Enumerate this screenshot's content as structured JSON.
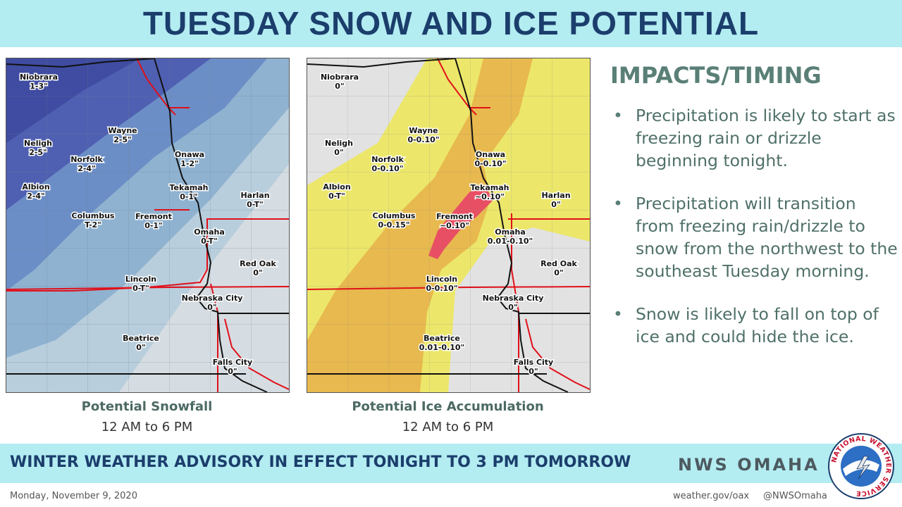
{
  "header": {
    "title": "TUESDAY SNOW AND ICE POTENTIAL"
  },
  "maps": [
    {
      "caption": "Potential Snowfall",
      "subcaption": "12 AM to 6 PM",
      "cities": [
        {
          "name": "Niobrara",
          "value": "1-3\""
        },
        {
          "name": "Neligh",
          "value": "2-5\""
        },
        {
          "name": "Wayne",
          "value": "2-5\""
        },
        {
          "name": "Norfolk",
          "value": "2-4\""
        },
        {
          "name": "Albion",
          "value": "2-4\""
        },
        {
          "name": "Onawa",
          "value": "1-2\""
        },
        {
          "name": "Tekamah",
          "value": "0-1\""
        },
        {
          "name": "Harlan",
          "value": "0-T\""
        },
        {
          "name": "Columbus",
          "value": "T-2\""
        },
        {
          "name": "Fremont",
          "value": "0-1\""
        },
        {
          "name": "Omaha",
          "value": "0-T\""
        },
        {
          "name": "Red Oak",
          "value": "0\""
        },
        {
          "name": "Lincoln",
          "value": "0-T\""
        },
        {
          "name": "Nebraska City",
          "value": "0\""
        },
        {
          "name": "Beatrice",
          "value": "0\""
        },
        {
          "name": "Falls City",
          "value": "0\""
        }
      ]
    },
    {
      "caption": "Potential Ice Accumulation",
      "subcaption": "12 AM to 6 PM",
      "cities": [
        {
          "name": "Niobrara",
          "value": "0\""
        },
        {
          "name": "Neligh",
          "value": "0\""
        },
        {
          "name": "Wayne",
          "value": "0-0.10\""
        },
        {
          "name": "Norfolk",
          "value": "0-0.10\""
        },
        {
          "name": "Albion",
          "value": "0-T\""
        },
        {
          "name": "Onawa",
          "value": "0-0.10\""
        },
        {
          "name": "Tekamah",
          "value": "~0.10\""
        },
        {
          "name": "Harlan",
          "value": "0\""
        },
        {
          "name": "Columbus",
          "value": "0-0.15\""
        },
        {
          "name": "Fremont",
          "value": "~0.10\""
        },
        {
          "name": "Omaha",
          "value": "0.01-0.10\""
        },
        {
          "name": "Red Oak",
          "value": "0\""
        },
        {
          "name": "Lincoln",
          "value": "0-0.10\""
        },
        {
          "name": "Nebraska City",
          "value": "0\""
        },
        {
          "name": "Beatrice",
          "value": "0.01-0.10\""
        },
        {
          "name": "Falls City",
          "value": "0\""
        }
      ]
    }
  ],
  "impacts": {
    "title": "IMPACTS/TIMING",
    "bullets": [
      "Precipitation is likely to start as freezing rain or drizzle beginning tonight.",
      "Precipitation will transition from freezing rain/drizzle to snow from the northwest to the southeast Tuesday morning.",
      "Snow is likely to fall on top of ice and could hide the ice."
    ]
  },
  "banner": {
    "text": "WINTER WEATHER ADVISORY IN EFFECT TONIGHT TO 3 PM TOMORROW",
    "office": "NWS OMAHA"
  },
  "logo": {
    "text": "NATIONAL WEATHER SERVICE"
  },
  "footer": {
    "date": "Monday, November 9, 2020",
    "website": "weather.gov/oax",
    "twitter": "@NWSOmaha"
  }
}
